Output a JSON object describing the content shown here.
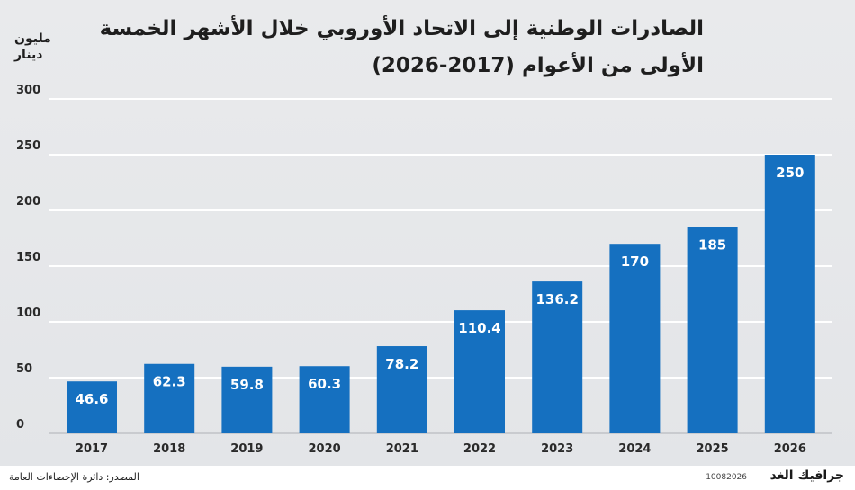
{
  "title_line1": "الصادرات الوطنية إلى الاتحاد الأوروبي خلال الأشهر الخمسة",
  "title_line2": "الأولى من الأعوام (2017-2026)",
  "unit_line1": "مليون",
  "unit_line2": "دينار",
  "source": "المصدر: دائرة الإحصاءات العامة",
  "logo": "جرافيك الغد",
  "code": "10082026",
  "colors": {
    "bar": "#1570c0",
    "gridline": "#ffffff",
    "background": "#e6e7ea",
    "label": "#ffffff"
  },
  "chart_data": {
    "type": "bar",
    "title": "الصادرات الوطنية إلى الاتحاد الأوروبي خلال الأشهر الخمسة الأولى من الأعوام (2017-2026)",
    "ylabel": "مليون دينار",
    "xlabel": "",
    "ylim": [
      0,
      300
    ],
    "yticks": [
      0,
      50,
      100,
      150,
      200,
      250,
      300
    ],
    "grid": true,
    "categories": [
      "2017",
      "2018",
      "2019",
      "2020",
      "2021",
      "2022",
      "2023",
      "2024",
      "2025",
      "2026"
    ],
    "values": [
      46.6,
      62.3,
      59.8,
      60.3,
      78.2,
      110.4,
      136.2,
      170,
      185,
      250
    ],
    "value_labels": [
      "46.6",
      "62.3",
      "59.8",
      "60.3",
      "78.2",
      "110.4",
      "136.2",
      "170",
      "185",
      "250"
    ]
  }
}
